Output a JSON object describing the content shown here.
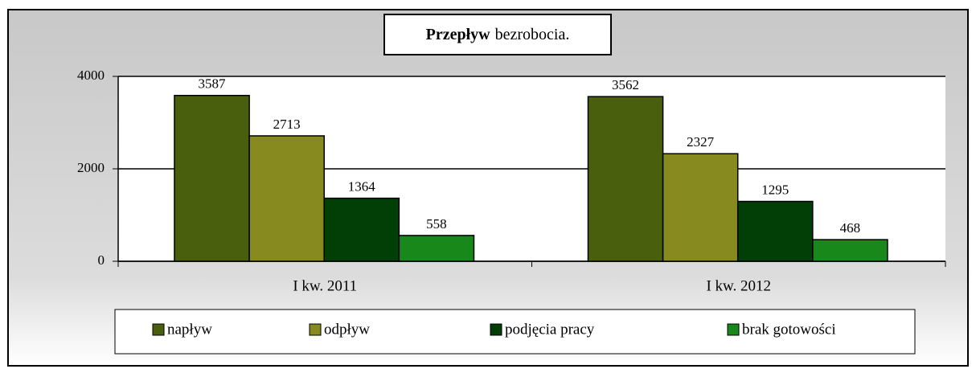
{
  "chart_data": {
    "type": "bar",
    "title": [
      "Przepływ",
      "bezrobocia."
    ],
    "categories": [
      "I kw. 2011",
      "I kw. 2012"
    ],
    "series": [
      {
        "name": "napływ",
        "color": "#4a5f0d",
        "values": [
          3587,
          3562
        ]
      },
      {
        "name": "odpływ",
        "color": "#878a1f",
        "values": [
          2713,
          2327
        ]
      },
      {
        "name": "podjęcia pracy",
        "color": "#023f07",
        "values": [
          1364,
          1295
        ]
      },
      {
        "name": "brak gotowości",
        "color": "#19881a",
        "values": [
          558,
          468
        ]
      }
    ],
    "ylim": [
      0,
      4000
    ],
    "yticks": [
      0,
      2000,
      4000
    ],
    "grid": true,
    "legend": "bottom"
  }
}
